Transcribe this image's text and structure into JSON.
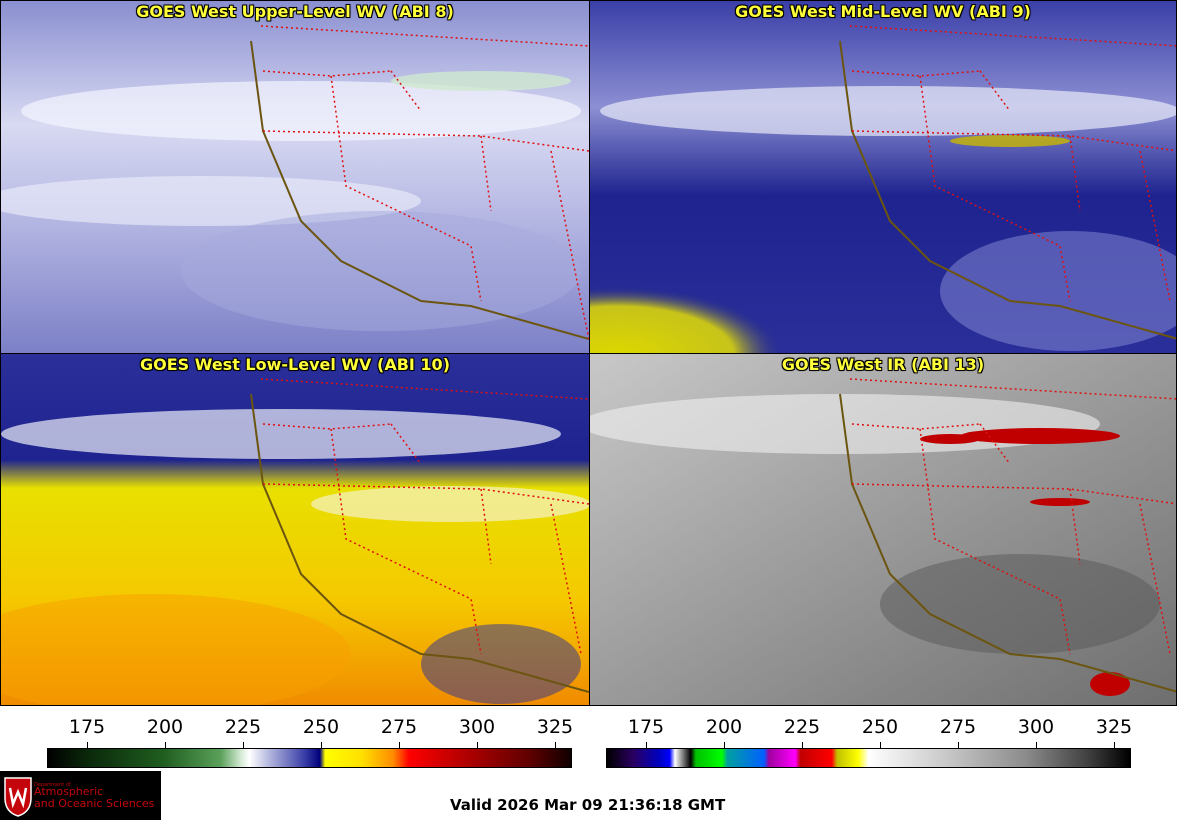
{
  "panels": [
    {
      "title": "GOES West Upper-Level WV (ABI 8)"
    },
    {
      "title": "GOES West Mid-Level WV (ABI 9)"
    },
    {
      "title": "GOES West Low-Level WV (ABI 10)"
    },
    {
      "title": "GOES West IR (ABI 13)"
    }
  ],
  "colorbars": [
    {
      "ticks": [
        "175",
        "200",
        "225",
        "250",
        "275",
        "300",
        "325"
      ]
    },
    {
      "ticks": [
        "175",
        "200",
        "225",
        "250",
        "275",
        "300",
        "325"
      ]
    }
  ],
  "logo": {
    "dept_line": "Department of",
    "name_line1": "Atmospheric",
    "name_line2": "and Oceanic Sciences"
  },
  "valid_time": "Valid 2026 Mar 09 21:36:18 GMT"
}
